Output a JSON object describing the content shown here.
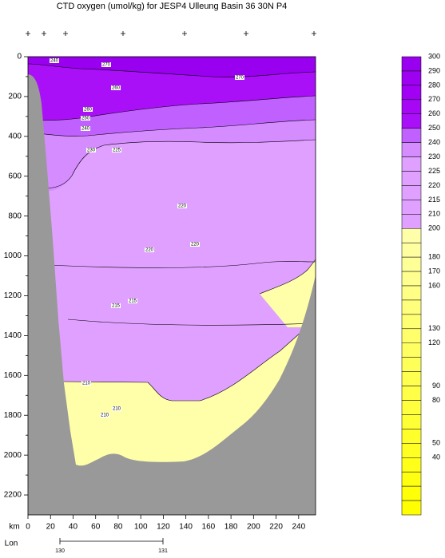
{
  "chart_data": {
    "type": "section",
    "title": "CTD oxygen (umol/kg) for JESP4 Ulleung Basin 36 30N P4",
    "x_label": "km",
    "xlim": [
      0,
      255
    ],
    "xticks": [
      0,
      20,
      40,
      60,
      80,
      100,
      120,
      140,
      160,
      180,
      200,
      220,
      240
    ],
    "ylim": [
      0,
      2300
    ],
    "yticks": [
      0,
      200,
      400,
      600,
      800,
      1000,
      1200,
      1400,
      1600,
      1800,
      2000,
      2200
    ],
    "lon_label": "Lon",
    "lon_ticks": [
      130,
      131
    ],
    "contour_labels": [
      240,
      270,
      270,
      260,
      260,
      250,
      240,
      230,
      225,
      220,
      220,
      220,
      215,
      215,
      210,
      210,
      210
    ],
    "colorbar": {
      "levels": [
        300,
        290,
        280,
        270,
        260,
        250,
        240,
        230,
        225,
        220,
        215,
        210,
        200,
        null,
        180,
        170,
        160,
        null,
        null,
        130,
        120,
        null,
        null,
        90,
        80,
        null,
        null,
        50,
        40,
        null,
        null,
        null,
        null
      ],
      "colors": [
        "#9a00f0",
        "#9e00f2",
        "#a200f4",
        "#a608f6",
        "#aa10f8",
        "#c060ff",
        "#d58cff",
        "#e0a0ff",
        "#e0a0ff",
        "#e0a0ff",
        "#e0a0ff",
        "#e0a0ff",
        "#ffffaa",
        "#ffffa1",
        "#ffff98",
        "#ffff8f",
        "#ffff86",
        "#ffff7d",
        "#ffff74",
        "#ffff6b",
        "#ffff62",
        "#ffff59",
        "#ffff50",
        "#ffff47",
        "#ffff3e",
        "#ffff35",
        "#ffff2c",
        "#ffff23",
        "#ffff1a",
        "#ffff11",
        "#ffff08",
        "#ffff00"
      ]
    },
    "bathymetry_color": "#999999"
  }
}
